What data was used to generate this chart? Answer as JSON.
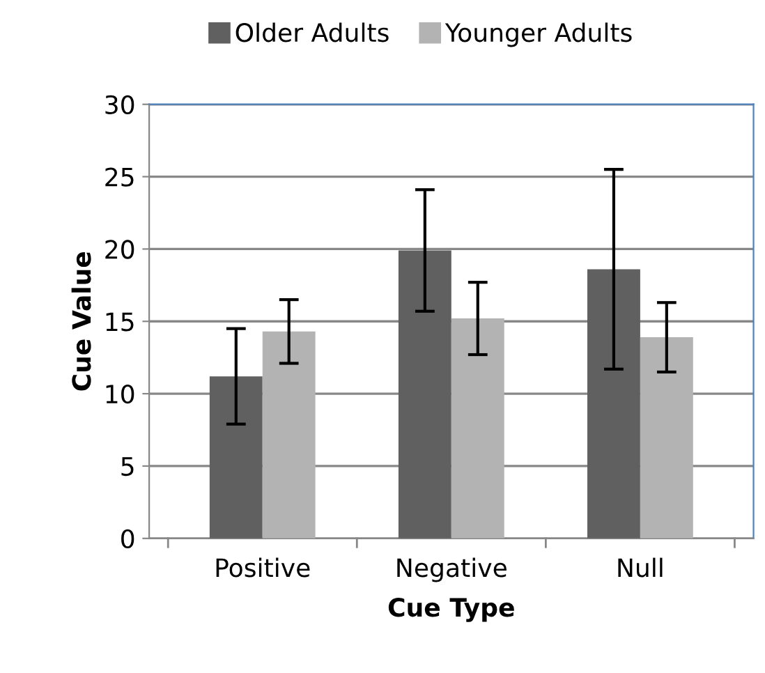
{
  "chart_data": {
    "type": "bar",
    "xlabel": "Cue Type",
    "ylabel": "Cue Value",
    "categories": [
      "Positive",
      "Negative",
      "Null"
    ],
    "series": [
      {
        "name": "Older Adults",
        "color": "#606060",
        "values": [
          11.2,
          19.9,
          18.6
        ],
        "errors": [
          3.3,
          4.2,
          6.9
        ]
      },
      {
        "name": "Younger Adults",
        "color": "#b3b3b3",
        "values": [
          14.3,
          15.2,
          13.9
        ],
        "errors": [
          2.2,
          2.5,
          2.4
        ]
      }
    ],
    "ylim": [
      0,
      30
    ],
    "yticks": [
      0,
      5,
      10,
      15,
      20,
      25,
      30
    ],
    "grid": "y",
    "legend": "top"
  }
}
